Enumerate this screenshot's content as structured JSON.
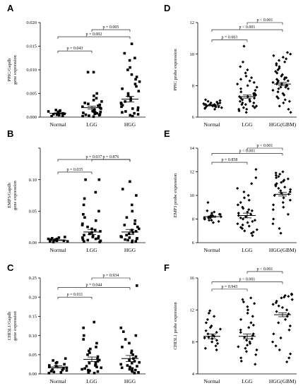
{
  "chart_data": [
    {
      "panel": "A",
      "type": "scatter",
      "ylabel": [
        "PPIC/Gapdh",
        "gene expression"
      ],
      "categories": [
        "Normal",
        "LGG",
        "HGG"
      ],
      "ylim": [
        0,
        0.02
      ],
      "yticks": [
        0.0,
        0.005,
        0.01,
        0.015,
        0.02
      ],
      "ytick_labels": [
        "0.000",
        "0.005",
        "0.010",
        "0.015",
        "0.020"
      ],
      "marker": "circle",
      "series": [
        {
          "name": "Normal",
          "values": [
            0.0002,
            0.0003,
            0.0004,
            0.0005,
            0.0006,
            0.0007,
            0.0008,
            0.0009,
            0.001,
            0.0011,
            0.0012,
            0.0013,
            0.0014,
            0.0015
          ],
          "mean": 0.0008,
          "sem": 0.0001
        },
        {
          "name": "LGG",
          "values": [
            0.0001,
            0.0002,
            0.0003,
            0.0004,
            0.0005,
            0.0006,
            0.0007,
            0.0008,
            0.0009,
            0.001,
            0.0011,
            0.0012,
            0.0013,
            0.0015,
            0.0016,
            0.0018,
            0.002,
            0.0022,
            0.0024,
            0.0026,
            0.0028,
            0.003,
            0.0033,
            0.0036,
            0.004,
            0.0045,
            0.005,
            0.0095,
            0.0095
          ],
          "mean": 0.002,
          "sem": 0.0003
        },
        {
          "name": "HGG",
          "values": [
            0.0002,
            0.0004,
            0.0006,
            0.0008,
            0.001,
            0.0012,
            0.0015,
            0.0018,
            0.002,
            0.0022,
            0.0025,
            0.0028,
            0.003,
            0.0033,
            0.0036,
            0.004,
            0.0045,
            0.005,
            0.0055,
            0.006,
            0.0065,
            0.007,
            0.0075,
            0.008,
            0.0085,
            0.009,
            0.01,
            0.0105,
            0.012,
            0.0125,
            0.0135,
            0.0155
          ],
          "mean": 0.0038,
          "sem": 0.0006
        }
      ],
      "comparisons": [
        {
          "from": 0,
          "to": 1,
          "y": 0.014,
          "label": "p = 0.043"
        },
        {
          "from": 0,
          "to": 2,
          "y": 0.017,
          "label": "p = 0.002"
        },
        {
          "from": 1,
          "to": 2,
          "y": 0.0185,
          "label": "p = 0.005"
        }
      ]
    },
    {
      "panel": "B",
      "type": "scatter",
      "ylabel": [
        "EMP3/Gapdh",
        "gene expression"
      ],
      "categories": [
        "Normal",
        "LGG",
        "HGG"
      ],
      "ylim": [
        0,
        0.15
      ],
      "yticks": [
        0.0,
        0.05,
        0.1,
        0.15
      ],
      "ytick_labels": [
        "0.00",
        "0.05",
        "0.10",
        ""
      ],
      "marker": "circle",
      "series": [
        {
          "name": "Normal",
          "values": [
            0.001,
            0.002,
            0.002,
            0.003,
            0.003,
            0.004,
            0.004,
            0.005,
            0.005,
            0.006,
            0.006,
            0.007,
            0.008,
            0.009
          ],
          "mean": 0.004,
          "sem": 0.0005
        },
        {
          "name": "LGG",
          "values": [
            0.001,
            0.002,
            0.003,
            0.004,
            0.005,
            0.006,
            0.007,
            0.008,
            0.009,
            0.01,
            0.011,
            0.012,
            0.014,
            0.016,
            0.018,
            0.02,
            0.022,
            0.025,
            0.028,
            0.03,
            0.035,
            0.04,
            0.045,
            0.05,
            0.06,
            0.07,
            0.08,
            0.1,
            0.1
          ],
          "mean": 0.017,
          "sem": 0.004
        },
        {
          "name": "HGG",
          "values": [
            0.001,
            0.002,
            0.003,
            0.004,
            0.005,
            0.006,
            0.007,
            0.008,
            0.009,
            0.01,
            0.012,
            0.014,
            0.016,
            0.018,
            0.02,
            0.022,
            0.025,
            0.028,
            0.03,
            0.035,
            0.04,
            0.05,
            0.06,
            0.075,
            0.085,
            0.097
          ],
          "mean": 0.017,
          "sem": 0.004
        }
      ],
      "comparisons": [
        {
          "from": 0,
          "to": 1,
          "y": 0.112,
          "label": "p = 0.035"
        },
        {
          "from": 0,
          "to": 2,
          "y": 0.132,
          "label": "p = 0.037"
        },
        {
          "from": 1,
          "to": 2,
          "y": 0.132,
          "label": "p = 0.876"
        }
      ]
    },
    {
      "panel": "C",
      "type": "scatter",
      "ylabel": [
        "CHI3L1/Gapdh",
        "gene expression"
      ],
      "categories": [
        "Normal",
        "LGG",
        "HGG"
      ],
      "ylim": [
        0,
        0.25
      ],
      "yticks": [
        0.0,
        0.05,
        0.1,
        0.15,
        0.2,
        0.25
      ],
      "ytick_labels": [
        "0.00",
        "0.05",
        "0.10",
        "0.15",
        "0.20",
        "0.25"
      ],
      "marker": "circle",
      "series": [
        {
          "name": "Normal",
          "values": [
            0.002,
            0.004,
            0.005,
            0.007,
            0.009,
            0.01,
            0.012,
            0.014,
            0.016,
            0.018,
            0.02,
            0.022,
            0.025,
            0.028,
            0.03,
            0.035,
            0.04
          ],
          "mean": 0.018,
          "sem": 0.003
        },
        {
          "name": "LGG",
          "values": [
            0.002,
            0.004,
            0.006,
            0.008,
            0.01,
            0.012,
            0.014,
            0.016,
            0.018,
            0.02,
            0.022,
            0.025,
            0.028,
            0.03,
            0.033,
            0.036,
            0.04,
            0.045,
            0.05,
            0.055,
            0.06,
            0.065,
            0.07,
            0.08,
            0.09,
            0.1,
            0.12,
            0.135
          ],
          "mean": 0.038,
          "sem": 0.006
        },
        {
          "name": "HGG",
          "values": [
            0.002,
            0.004,
            0.006,
            0.008,
            0.01,
            0.012,
            0.014,
            0.016,
            0.018,
            0.02,
            0.022,
            0.025,
            0.028,
            0.03,
            0.033,
            0.036,
            0.04,
            0.045,
            0.05,
            0.055,
            0.06,
            0.07,
            0.08,
            0.09,
            0.1,
            0.11,
            0.12,
            0.23
          ],
          "mean": 0.04,
          "sem": 0.008
        }
      ],
      "comparisons": [
        {
          "from": 0,
          "to": 1,
          "y": 0.2,
          "label": "p = 0.011"
        },
        {
          "from": 0,
          "to": 2,
          "y": 0.225,
          "label": "p = 0.044"
        },
        {
          "from": 1,
          "to": 2,
          "y": 0.25,
          "label": "p = 0.934"
        }
      ]
    },
    {
      "panel": "D",
      "type": "scatter",
      "ylabel": [
        "PPIC probe expression"
      ],
      "categories": [
        "Normal",
        "LGG",
        "HGG(GBM)"
      ],
      "ylim": [
        6,
        12
      ],
      "yticks": [
        6,
        8,
        10,
        12
      ],
      "ytick_labels": [
        "6",
        "8",
        "10",
        "12"
      ],
      "marker": "diamond",
      "series": [
        {
          "name": "Normal",
          "values": [
            6.5,
            6.55,
            6.6,
            6.6,
            6.65,
            6.65,
            6.7,
            6.7,
            6.7,
            6.75,
            6.75,
            6.8,
            6.8,
            6.8,
            6.85,
            6.85,
            6.9,
            6.9,
            6.95,
            7.0,
            7.05,
            7.1
          ],
          "mean": 6.75,
          "sem": 0.04
        },
        {
          "name": "LGG",
          "values": [
            6.3,
            6.4,
            6.5,
            6.5,
            6.6,
            6.6,
            6.7,
            6.7,
            6.8,
            6.8,
            6.9,
            6.9,
            7.0,
            7.0,
            7.1,
            7.1,
            7.2,
            7.2,
            7.3,
            7.3,
            7.4,
            7.4,
            7.5,
            7.5,
            7.6,
            7.7,
            7.8,
            7.9,
            8.0,
            8.1,
            8.2,
            8.3,
            8.4,
            8.5,
            8.6,
            8.8,
            9.0,
            9.2,
            9.5,
            10.5
          ],
          "mean": 7.3,
          "sem": 0.1
        },
        {
          "name": "HGG(GBM)",
          "values": [
            6.3,
            6.5,
            6.7,
            6.9,
            7.0,
            7.1,
            7.2,
            7.3,
            7.4,
            7.5,
            7.6,
            7.7,
            7.8,
            7.8,
            7.9,
            7.9,
            8.0,
            8.0,
            8.1,
            8.1,
            8.2,
            8.2,
            8.3,
            8.3,
            8.4,
            8.4,
            8.5,
            8.5,
            8.6,
            8.7,
            8.8,
            8.9,
            9.0,
            9.1,
            9.2,
            9.3,
            9.4,
            9.5,
            9.6,
            9.7,
            9.8,
            9.9,
            10.0,
            10.1
          ],
          "mean": 8.1,
          "sem": 0.1
        }
      ],
      "comparisons": [
        {
          "from": 0,
          "to": 1,
          "y": 10.9,
          "label": "p = 0.003"
        },
        {
          "from": 0,
          "to": 2,
          "y": 11.55,
          "label": "p < 0.001"
        },
        {
          "from": 1,
          "to": 2,
          "y": 12.0,
          "label": "p < 0.001"
        }
      ]
    },
    {
      "panel": "E",
      "type": "scatter",
      "ylabel": [
        "EMP3 probe expression"
      ],
      "categories": [
        "Normal",
        "LGG",
        "HGG(GBM)"
      ],
      "ylim": [
        6,
        14
      ],
      "yticks": [
        6,
        8,
        10,
        12,
        14
      ],
      "ytick_labels": [
        "6",
        "8",
        "10",
        "12",
        "14"
      ],
      "marker": "diamond",
      "series": [
        {
          "name": "Normal",
          "values": [
            7.7,
            7.8,
            7.9,
            7.9,
            8.0,
            8.0,
            8.1,
            8.1,
            8.1,
            8.2,
            8.2,
            8.2,
            8.3,
            8.3,
            8.3,
            8.4,
            8.4,
            8.5,
            8.6,
            8.7,
            9.4
          ],
          "mean": 8.2,
          "sem": 0.06
        },
        {
          "name": "LGG",
          "values": [
            6.6,
            6.8,
            6.9,
            7.0,
            7.1,
            7.2,
            7.3,
            7.4,
            7.5,
            7.6,
            7.7,
            7.8,
            7.9,
            8.0,
            8.1,
            8.2,
            8.3,
            8.4,
            8.5,
            8.6,
            8.7,
            8.8,
            8.9,
            9.0,
            9.2,
            9.4,
            9.6,
            9.8,
            10.0,
            10.3,
            10.6,
            11.0,
            11.5,
            12.2
          ],
          "mean": 8.3,
          "sem": 0.2
        },
        {
          "name": "HGG(GBM)",
          "values": [
            6.8,
            7.2,
            7.6,
            8.0,
            8.4,
            8.8,
            9.0,
            9.2,
            9.4,
            9.6,
            9.8,
            10.0,
            10.1,
            10.2,
            10.3,
            10.4,
            10.5,
            10.6,
            10.7,
            10.8,
            10.9,
            11.0,
            11.1,
            11.2,
            11.3,
            11.4,
            11.5,
            11.6,
            11.7,
            11.8,
            11.9,
            12.0
          ],
          "mean": 10.1,
          "sem": 0.15
        }
      ],
      "comparisons": [
        {
          "from": 0,
          "to": 1,
          "y": 12.8,
          "label": "p = 0.858"
        },
        {
          "from": 0,
          "to": 2,
          "y": 13.55,
          "label": "p < 0.001"
        },
        {
          "from": 1,
          "to": 2,
          "y": 14.0,
          "label": "p < 0.001"
        }
      ]
    },
    {
      "panel": "F",
      "type": "scatter",
      "ylabel": [
        "CHI3L1 probe expression"
      ],
      "categories": [
        "Normal",
        "LGG",
        "HGG(GBM)"
      ],
      "ylim": [
        4,
        16
      ],
      "yticks": [
        4,
        8,
        12,
        16
      ],
      "ytick_labels": [
        "4",
        "8",
        "12",
        "16"
      ],
      "marker": "diamond",
      "series": [
        {
          "name": "Normal",
          "values": [
            7.0,
            7.2,
            7.5,
            7.8,
            8.0,
            8.2,
            8.4,
            8.5,
            8.6,
            8.7,
            8.8,
            9.0,
            9.2,
            9.4,
            9.6,
            9.8,
            10.0,
            10.4,
            10.8,
            11.2,
            11.6,
            11.9
          ],
          "mean": 8.7,
          "sem": 0.3
        },
        {
          "name": "LGG",
          "values": [
            5.2,
            5.6,
            6.0,
            6.4,
            6.8,
            7.0,
            7.2,
            7.4,
            7.6,
            7.8,
            8.0,
            8.2,
            8.4,
            8.6,
            8.8,
            9.0,
            9.2,
            9.5,
            9.8,
            10.1,
            10.4,
            10.8,
            11.2,
            11.6,
            12.0,
            12.4,
            12.8,
            13.0,
            13.3,
            13.5
          ],
          "mean": 8.7,
          "sem": 0.3
        },
        {
          "name": "HGG(GBM)",
          "values": [
            5.5,
            6.0,
            6.5,
            7.0,
            7.5,
            8.0,
            8.5,
            9.0,
            9.5,
            10.0,
            10.4,
            10.8,
            11.2,
            11.5,
            11.8,
            12.0,
            12.3,
            12.5,
            12.7,
            12.9,
            13.1,
            13.3,
            13.5,
            13.6,
            13.7,
            13.8,
            13.9,
            14.0
          ],
          "mean": 11.4,
          "sem": 0.25
        }
      ],
      "comparisons": [
        {
          "from": 0,
          "to": 1,
          "y": 14.6,
          "label": "p = 0.943"
        },
        {
          "from": 0,
          "to": 2,
          "y": 15.5,
          "label": "p < 0.001"
        },
        {
          "from": 1,
          "to": 2,
          "y": 16.8,
          "label": "p < 0.001"
        }
      ]
    }
  ]
}
